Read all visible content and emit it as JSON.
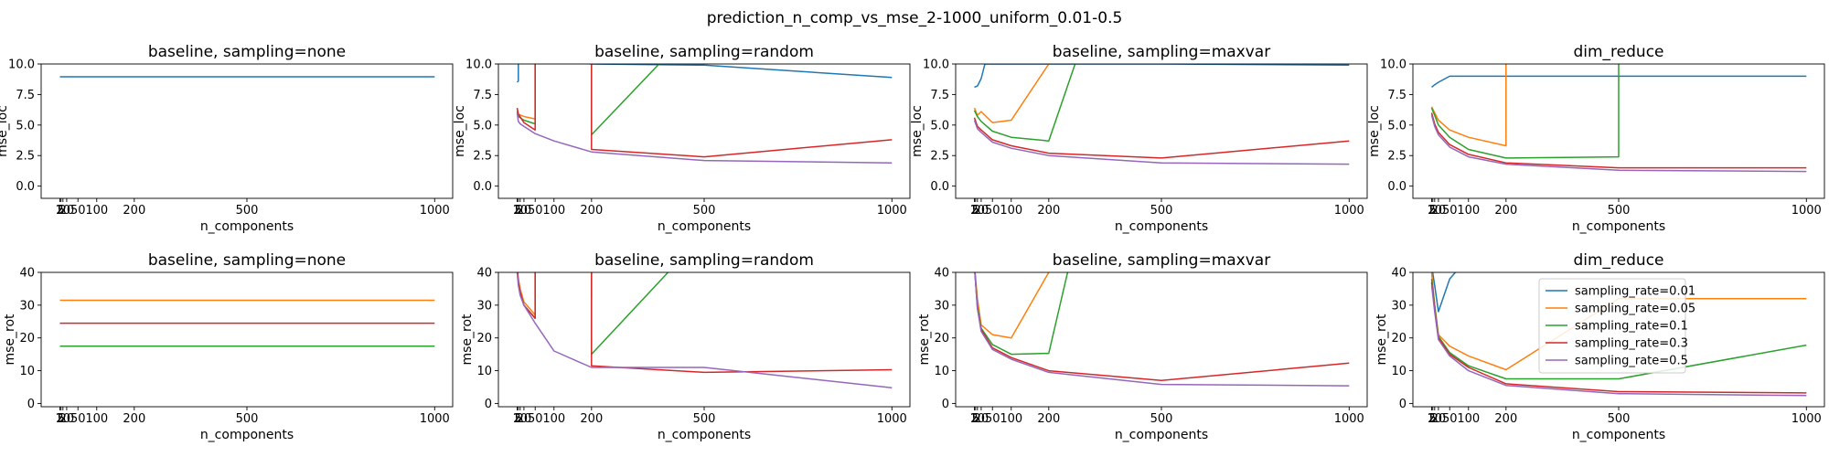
{
  "figure_title": "prediction_n_comp_vs_mse_2-1000_uniform_0.01-0.5",
  "colors": {
    "sampling_rate=0.01": "#1f77b4",
    "sampling_rate=0.05": "#ff7f0e",
    "sampling_rate=0.1": "#2ca02c",
    "sampling_rate=0.3": "#d62728",
    "sampling_rate=0.5": "#9467bd"
  },
  "chart_data": [
    {
      "type": "line",
      "title": "baseline, sampling=none",
      "xlabel": "n_components",
      "ylabel": "mse_loc",
      "xlim": [
        -48,
        1048
      ],
      "ylim": [
        -1,
        10
      ],
      "xticks": [
        2,
        5,
        10,
        20,
        50,
        100,
        200,
        500,
        1000
      ],
      "xticklabels": [
        "2",
        "5",
        "10",
        "20",
        "50",
        "100",
        "200",
        "500",
        "1000"
      ],
      "yticks": [
        0,
        2.5,
        5,
        7.5,
        10
      ],
      "yticklabels": [
        "0.0",
        "2.5",
        "5.0",
        "7.5",
        "10.0"
      ],
      "series": [
        {
          "name": "sampling_rate=0.01",
          "x": [
            2,
            1000
          ],
          "y": [
            8.95,
            8.95
          ]
        }
      ]
    },
    {
      "type": "line",
      "title": "baseline, sampling=random",
      "xlabel": "n_components",
      "ylabel": "mse_loc",
      "xlim": [
        -48,
        1048
      ],
      "ylim": [
        -1,
        10
      ],
      "xticks": [
        2,
        5,
        10,
        20,
        50,
        100,
        200,
        500,
        1000
      ],
      "xticklabels": [
        "2",
        "5",
        "10",
        "20",
        "50",
        "100",
        "200",
        "500",
        "1000"
      ],
      "yticks": [
        0,
        2.5,
        5,
        7.5,
        10
      ],
      "yticklabels": [
        "0.0",
        "2.5",
        "5.0",
        "7.5",
        "10.0"
      ],
      "series": [
        {
          "name": "sampling_rate=0.01",
          "x": [
            2,
            5,
            5,
            200,
            500,
            1000
          ],
          "y": [
            8.5,
            8.6,
            10.5,
            10,
            9.9,
            8.9
          ]
        },
        {
          "name": "sampling_rate=0.05",
          "x": [
            2,
            5,
            20,
            50,
            50,
            100
          ],
          "y": [
            6.3,
            5.9,
            5.7,
            5.5,
            10.5,
            10.5
          ]
        },
        {
          "name": "sampling_rate=0.1",
          "x": [
            2,
            5,
            20,
            50,
            50,
            200,
            200,
            380
          ],
          "y": [
            6.1,
            5.7,
            5.4,
            5.1,
            10.5,
            10.5,
            4.2,
            10
          ]
        },
        {
          "name": "sampling_rate=0.3",
          "x": [
            2,
            5,
            20,
            50,
            50,
            200,
            200,
            500,
            1000
          ],
          "y": [
            6.4,
            5.9,
            5.2,
            4.6,
            10.5,
            10.5,
            3.0,
            2.4,
            3.8
          ]
        },
        {
          "name": "sampling_rate=0.5",
          "x": [
            2,
            5,
            10,
            20,
            50,
            100,
            200,
            500,
            1000
          ],
          "y": [
            6.0,
            5.3,
            5.1,
            4.9,
            4.3,
            3.7,
            2.8,
            2.1,
            1.9
          ]
        }
      ]
    },
    {
      "type": "line",
      "title": "baseline, sampling=maxvar",
      "xlabel": "n_components",
      "ylabel": "mse_loc",
      "xlim": [
        -48,
        1048
      ],
      "ylim": [
        -1,
        10
      ],
      "xticks": [
        2,
        5,
        10,
        20,
        50,
        100,
        200,
        500,
        1000
      ],
      "xticklabels": [
        "2",
        "5",
        "10",
        "20",
        "50",
        "100",
        "200",
        "500",
        "1000"
      ],
      "yticks": [
        0,
        2.5,
        5,
        7.5,
        10
      ],
      "yticklabels": [
        "0.0",
        "2.5",
        "5.0",
        "7.5",
        "10.0"
      ],
      "series": [
        {
          "name": "sampling_rate=0.01",
          "x": [
            2,
            10,
            20,
            30,
            200,
            500,
            1000
          ],
          "y": [
            8.1,
            8.2,
            8.8,
            10,
            10,
            10,
            9.9
          ]
        },
        {
          "name": "sampling_rate=0.05",
          "x": [
            2,
            10,
            20,
            50,
            100,
            200
          ],
          "y": [
            6.4,
            5.8,
            6.1,
            5.2,
            5.4,
            10
          ]
        },
        {
          "name": "sampling_rate=0.1",
          "x": [
            2,
            10,
            20,
            50,
            100,
            200,
            270
          ],
          "y": [
            6.2,
            5.7,
            5.3,
            4.5,
            4.0,
            3.7,
            10
          ]
        },
        {
          "name": "sampling_rate=0.3",
          "x": [
            2,
            10,
            20,
            50,
            100,
            200,
            500,
            1000
          ],
          "y": [
            5.6,
            4.9,
            4.6,
            3.8,
            3.3,
            2.7,
            2.3,
            3.7
          ]
        },
        {
          "name": "sampling_rate=0.5",
          "x": [
            2,
            10,
            20,
            50,
            100,
            200,
            500,
            1000
          ],
          "y": [
            5.4,
            4.7,
            4.4,
            3.6,
            3.1,
            2.5,
            1.9,
            1.8
          ]
        }
      ]
    },
    {
      "type": "line",
      "title": "dim_reduce",
      "xlabel": "n_components",
      "ylabel": "mse_loc",
      "xlim": [
        -48,
        1048
      ],
      "ylim": [
        -1,
        10
      ],
      "xticks": [
        2,
        5,
        10,
        20,
        50,
        100,
        200,
        500,
        1000
      ],
      "xticklabels": [
        "2",
        "5",
        "10",
        "20",
        "50",
        "100",
        "200",
        "500",
        "1000"
      ],
      "yticks": [
        0,
        2.5,
        5,
        7.5,
        10
      ],
      "yticklabels": [
        "0.0",
        "2.5",
        "5.0",
        "7.5",
        "10.0"
      ],
      "series": [
        {
          "name": "sampling_rate=0.01",
          "x": [
            2,
            10,
            20,
            50,
            100,
            200,
            500,
            1000
          ],
          "y": [
            8.1,
            8.3,
            8.5,
            9.0,
            9.0,
            9.0,
            9.0,
            9.0
          ]
        },
        {
          "name": "sampling_rate=0.05",
          "x": [
            2,
            10,
            20,
            50,
            100,
            200,
            200
          ],
          "y": [
            6.5,
            6.0,
            5.4,
            4.6,
            4.0,
            3.3,
            10.5
          ]
        },
        {
          "name": "sampling_rate=0.1",
          "x": [
            2,
            10,
            20,
            50,
            100,
            200,
            500,
            500
          ],
          "y": [
            6.4,
            5.8,
            5.0,
            4.0,
            3.0,
            2.3,
            2.4,
            10.5
          ]
        },
        {
          "name": "sampling_rate=0.3",
          "x": [
            2,
            10,
            20,
            50,
            100,
            200,
            500,
            1000
          ],
          "y": [
            6.0,
            5.1,
            4.4,
            3.4,
            2.6,
            1.9,
            1.5,
            1.5
          ]
        },
        {
          "name": "sampling_rate=0.5",
          "x": [
            2,
            10,
            20,
            50,
            100,
            200,
            500,
            1000
          ],
          "y": [
            5.8,
            4.9,
            4.2,
            3.2,
            2.4,
            1.8,
            1.3,
            1.2
          ]
        }
      ]
    },
    {
      "type": "line",
      "title": "baseline, sampling=none",
      "xlabel": "n_components",
      "ylabel": "mse_rot",
      "xlim": [
        -48,
        1048
      ],
      "ylim": [
        -1,
        40
      ],
      "xticks": [
        2,
        5,
        10,
        20,
        50,
        100,
        200,
        500,
        1000
      ],
      "xticklabels": [
        "2",
        "5",
        "10",
        "20",
        "50",
        "100",
        "200",
        "500",
        "1000"
      ],
      "yticks": [
        0,
        10,
        20,
        30,
        40
      ],
      "yticklabels": [
        "0",
        "10",
        "20",
        "30",
        "40"
      ],
      "series": [
        {
          "name": "sampling_rate=0.05",
          "x": [
            2,
            1000
          ],
          "y": [
            31.5,
            31.5
          ]
        },
        {
          "name": "sampling_rate=0.3",
          "x": [
            2,
            1000
          ],
          "y": [
            24.5,
            24.5
          ]
        },
        {
          "name": "sampling_rate=0.1",
          "x": [
            2,
            1000
          ],
          "y": [
            17.5,
            17.5
          ]
        }
      ]
    },
    {
      "type": "line",
      "title": "baseline, sampling=random",
      "xlabel": "n_components",
      "ylabel": "mse_rot",
      "xlim": [
        -48,
        1048
      ],
      "ylim": [
        -1,
        40
      ],
      "xticks": [
        2,
        5,
        10,
        20,
        50,
        100,
        200,
        500,
        1000
      ],
      "xticklabels": [
        "2",
        "5",
        "10",
        "20",
        "50",
        "100",
        "200",
        "500",
        "1000"
      ],
      "yticks": [
        0,
        10,
        20,
        30,
        40
      ],
      "yticklabels": [
        "0",
        "10",
        "20",
        "30",
        "40"
      ],
      "series": [
        {
          "name": "sampling_rate=0.05",
          "x": [
            2,
            5,
            10,
            20,
            50,
            50,
            200,
            200
          ],
          "y": [
            42,
            38,
            35,
            31,
            27,
            42,
            42,
            32
          ]
        },
        {
          "name": "sampling_rate=0.1",
          "x": [
            2,
            5,
            10,
            20,
            50,
            50,
            200,
            200,
            420
          ],
          "y": [
            42,
            37,
            34,
            30,
            26,
            42,
            42,
            15,
            42
          ]
        },
        {
          "name": "sampling_rate=0.3",
          "x": [
            2,
            5,
            10,
            20,
            50,
            50,
            200,
            200,
            500,
            1000
          ],
          "y": [
            42,
            37,
            34,
            30,
            26,
            42,
            42,
            11.5,
            9.5,
            10.3
          ]
        },
        {
          "name": "sampling_rate=0.5",
          "x": [
            2,
            5,
            10,
            20,
            50,
            100,
            200,
            500,
            1000
          ],
          "y": [
            40,
            36,
            33,
            30,
            24.5,
            16,
            11,
            11,
            4.8
          ]
        }
      ]
    },
    {
      "type": "line",
      "title": "baseline, sampling=maxvar",
      "xlabel": "n_components",
      "ylabel": "mse_rot",
      "xlim": [
        -48,
        1048
      ],
      "ylim": [
        -1,
        40
      ],
      "xticks": [
        2,
        5,
        10,
        20,
        50,
        100,
        200,
        500,
        1000
      ],
      "xticklabels": [
        "2",
        "5",
        "10",
        "20",
        "50",
        "100",
        "200",
        "500",
        "1000"
      ],
      "yticks": [
        0,
        10,
        20,
        30,
        40
      ],
      "yticklabels": [
        "0",
        "10",
        "20",
        "30",
        "40"
      ],
      "series": [
        {
          "name": "sampling_rate=0.01",
          "x": [
            2,
            5
          ],
          "y": [
            42,
            38
          ]
        },
        {
          "name": "sampling_rate=0.05",
          "x": [
            2,
            10,
            20,
            50,
            100,
            200
          ],
          "y": [
            42,
            32,
            24,
            21,
            20,
            40
          ]
        },
        {
          "name": "sampling_rate=0.1",
          "x": [
            2,
            10,
            20,
            50,
            100,
            200,
            250
          ],
          "y": [
            42,
            30,
            23,
            18,
            15,
            15.3,
            40
          ]
        },
        {
          "name": "sampling_rate=0.3",
          "x": [
            2,
            10,
            20,
            50,
            100,
            200,
            500,
            1000
          ],
          "y": [
            42,
            29,
            22.5,
            17,
            14,
            10,
            7,
            12.3
          ]
        },
        {
          "name": "sampling_rate=0.5",
          "x": [
            2,
            10,
            20,
            50,
            100,
            200,
            500,
            1000
          ],
          "y": [
            42,
            29,
            22,
            16.5,
            13.5,
            9.5,
            5.8,
            5.4
          ]
        }
      ]
    },
    {
      "type": "line",
      "title": "dim_reduce",
      "xlabel": "n_components",
      "ylabel": "mse_rot",
      "xlim": [
        -48,
        1048
      ],
      "ylim": [
        -1,
        40
      ],
      "xticks": [
        2,
        5,
        10,
        20,
        50,
        100,
        200,
        500,
        1000
      ],
      "xticklabels": [
        "2",
        "5",
        "10",
        "20",
        "50",
        "100",
        "200",
        "500",
        "1000"
      ],
      "yticks": [
        0,
        10,
        20,
        30,
        40
      ],
      "yticklabels": [
        "0",
        "10",
        "20",
        "30",
        "40"
      ],
      "legend_loc": "upper center",
      "series": [
        {
          "name": "sampling_rate=0.01",
          "x": [
            2,
            10,
            20,
            50,
            80
          ],
          "y": [
            42,
            36,
            28,
            38,
            42
          ]
        },
        {
          "name": "sampling_rate=0.05",
          "x": [
            2,
            10,
            20,
            50,
            100,
            200,
            500,
            1000
          ],
          "y": [
            40,
            30,
            21,
            17.5,
            14.5,
            10.3,
            32,
            32
          ]
        },
        {
          "name": "sampling_rate=0.1",
          "x": [
            2,
            10,
            20,
            50,
            100,
            200,
            500,
            1000
          ],
          "y": [
            38,
            30,
            20.5,
            15.5,
            11.5,
            7.5,
            7.5,
            17.8
          ]
        },
        {
          "name": "sampling_rate=0.3",
          "x": [
            2,
            10,
            20,
            50,
            100,
            200,
            500,
            1000
          ],
          "y": [
            37,
            29,
            20,
            15,
            11,
            6,
            3.6,
            3.2
          ]
        },
        {
          "name": "sampling_rate=0.5",
          "x": [
            2,
            10,
            20,
            50,
            100,
            200,
            500,
            1000
          ],
          "y": [
            36,
            28,
            19.5,
            14.5,
            10,
            5.5,
            3,
            2.4
          ]
        }
      ]
    }
  ]
}
